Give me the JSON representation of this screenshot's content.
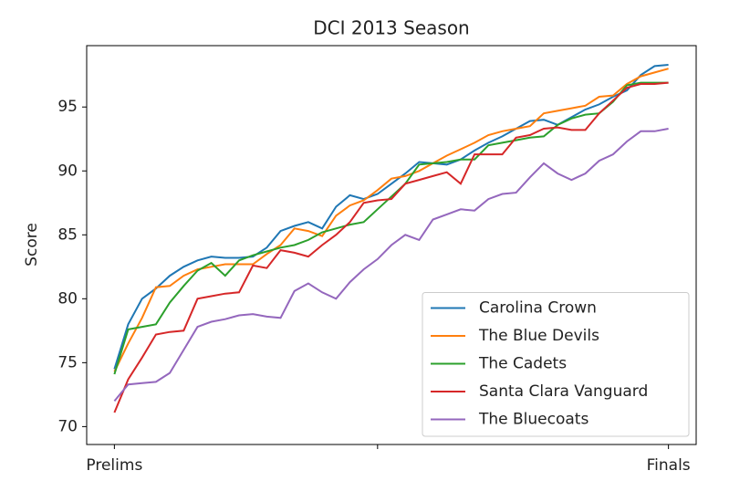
{
  "chart_data": {
    "type": "line",
    "title": "DCI 2013 Season",
    "y_label": "Score",
    "categories": [
      "Prelims",
      null,
      null,
      null,
      null,
      null,
      null,
      null,
      null,
      null,
      null,
      null,
      null,
      null,
      null,
      null,
      null,
      null,
      null,
      null,
      null,
      null,
      null,
      null,
      null,
      null,
      null,
      null,
      null,
      null,
      null,
      null,
      null,
      null,
      null,
      null,
      null,
      null,
      null,
      null,
      "Finals"
    ],
    "xticks": [
      0,
      19,
      40
    ],
    "xlim": [
      -2,
      42
    ],
    "ylim": [
      68.6,
      99.8
    ],
    "yticks": [
      70,
      75,
      80,
      85,
      90,
      95
    ],
    "grid": false,
    "legend": "lower right",
    "series": [
      {
        "name": "Carolina Crown",
        "color": "#1f77b4",
        "values": [
          74.5,
          78,
          80,
          80.8,
          81.8,
          82.5,
          83,
          83.3,
          83.2,
          83.2,
          83.3,
          84,
          85.3,
          85.7,
          86,
          85.5,
          87.2,
          88.1,
          87.8,
          88.2,
          89,
          89.8,
          90.7,
          90.6,
          90.5,
          90.9,
          91.6,
          92.2,
          92.7,
          93.3,
          93.9,
          94.0,
          93.6,
          94.2,
          94.8,
          95.2,
          95.8,
          96.3,
          97.5,
          98.2,
          98.3
        ]
      },
      {
        "name": "The Blue Devils",
        "color": "#ff7f0e",
        "values": [
          74.3,
          76.5,
          78.5,
          80.9,
          81,
          81.8,
          82.3,
          82.5,
          82.7,
          82.7,
          82.7,
          83.5,
          84.2,
          85.5,
          85.3,
          84.9,
          86.5,
          87.3,
          87.7,
          88.5,
          89.4,
          89.6,
          90,
          90.6,
          91.2,
          91.7,
          92.2,
          92.8,
          93.1,
          93.3,
          93.5,
          94.5,
          94.7,
          94.9,
          95.1,
          95.8,
          95.9,
          96.8,
          97.4,
          97.7,
          98.0
        ]
      },
      {
        "name": "The Cadets",
        "color": "#2ca02c",
        "values": [
          74.1,
          77.6,
          77.8,
          78,
          79.7,
          81,
          82.2,
          82.8,
          81.8,
          83,
          83.4,
          83.7,
          84,
          84.2,
          84.6,
          85.2,
          85.5,
          85.8,
          86,
          87,
          88,
          89,
          90.5,
          90.6,
          90.7,
          90.9,
          90.9,
          92.0,
          92.2,
          92.4,
          92.6,
          92.7,
          93.6,
          94.1,
          94.4,
          94.5,
          95.4,
          96.7,
          96.9,
          96.9,
          96.9
        ]
      },
      {
        "name": "Santa Clara Vanguard",
        "color": "#d62728",
        "values": [
          71.1,
          73.7,
          75.4,
          77.2,
          77.4,
          77.5,
          80,
          80.2,
          80.4,
          80.5,
          82.6,
          82.4,
          83.8,
          83.6,
          83.3,
          84.2,
          85,
          86,
          87.5,
          87.7,
          87.8,
          89,
          89.3,
          89.6,
          89.9,
          89,
          91.3,
          91.3,
          91.3,
          92.6,
          92.8,
          93.3,
          93.4,
          93.2,
          93.2,
          94.5,
          95.5,
          96.5,
          96.8,
          96.8,
          96.9
        ]
      },
      {
        "name": "The Bluecoats",
        "color": "#9467bd",
        "values": [
          72,
          73.3,
          73.4,
          73.5,
          74.2,
          76,
          77.8,
          78.2,
          78.4,
          78.7,
          78.8,
          78.6,
          78.5,
          80.6,
          81.2,
          80.5,
          80,
          81.3,
          82.3,
          83.1,
          84.2,
          85,
          84.6,
          86.2,
          86.6,
          87,
          86.9,
          87.8,
          88.2,
          88.3,
          89.5,
          90.6,
          89.8,
          89.3,
          89.8,
          90.8,
          91.3,
          92.3,
          93.1,
          93.1,
          93.3
        ]
      }
    ]
  }
}
